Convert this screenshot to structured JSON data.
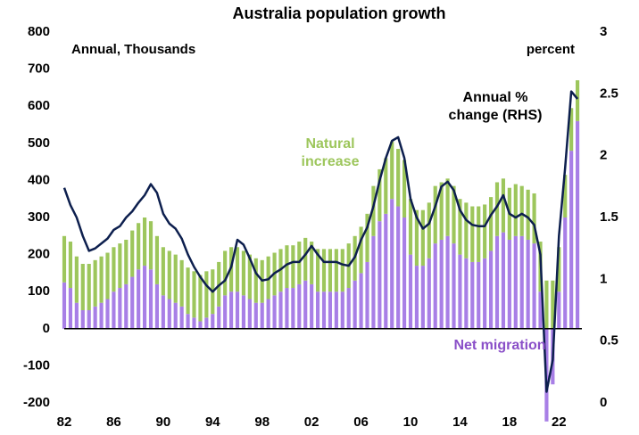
{
  "chart_data": {
    "type": "stacked-bar-line",
    "title": "Australia population growth",
    "annotations": [
      "Annual, Thousands",
      "percent"
    ],
    "x": [
      1982,
      1982.5,
      1983,
      1983.5,
      1984,
      1984.5,
      1985,
      1985.5,
      1986,
      1986.5,
      1987,
      1987.5,
      1988,
      1988.5,
      1989,
      1989.5,
      1990,
      1990.5,
      1991,
      1991.5,
      1992,
      1992.5,
      1993,
      1993.5,
      1994,
      1994.5,
      1995,
      1995.5,
      1996,
      1996.5,
      1997,
      1997.5,
      1998,
      1998.5,
      1999,
      1999.5,
      2000,
      2000.5,
      2001,
      2001.5,
      2002,
      2002.5,
      2003,
      2003.5,
      2004,
      2004.5,
      2005,
      2005.5,
      2006,
      2006.5,
      2007,
      2007.5,
      2008,
      2008.5,
      2009,
      2009.5,
      2010,
      2010.5,
      2011,
      2011.5,
      2012,
      2012.5,
      2013,
      2013.5,
      2014,
      2014.5,
      2015,
      2015.5,
      2016,
      2016.5,
      2017,
      2017.5,
      2018,
      2018.5,
      2019,
      2019.5,
      2020,
      2020.5,
      2021,
      2021.5,
      2022,
      2022.5,
      2023,
      2023.5
    ],
    "series": [
      {
        "name": "Net migration",
        "color": "#a87fe6",
        "values": [
          125,
          110,
          70,
          50,
          50,
          60,
          70,
          80,
          100,
          110,
          120,
          140,
          160,
          170,
          160,
          120,
          90,
          80,
          70,
          60,
          40,
          30,
          20,
          30,
          40,
          60,
          90,
          100,
          100,
          90,
          80,
          70,
          70,
          80,
          90,
          100,
          110,
          110,
          120,
          130,
          120,
          100,
          100,
          100,
          100,
          100,
          110,
          130,
          150,
          180,
          250,
          290,
          310,
          350,
          330,
          300,
          200,
          170,
          170,
          190,
          230,
          240,
          250,
          230,
          200,
          190,
          180,
          180,
          190,
          210,
          250,
          260,
          240,
          250,
          250,
          240,
          230,
          100,
          -250,
          -150,
          100,
          300,
          480,
          560
        ]
      },
      {
        "name": "Natural increase",
        "color": "#9dc65c",
        "values": [
          125,
          125,
          125,
          125,
          125,
          125,
          125,
          125,
          120,
          120,
          120,
          125,
          125,
          130,
          130,
          130,
          130,
          130,
          130,
          125,
          125,
          125,
          125,
          125,
          120,
          120,
          120,
          120,
          120,
          120,
          120,
          120,
          115,
          115,
          115,
          115,
          115,
          115,
          115,
          115,
          115,
          115,
          115,
          115,
          115,
          115,
          120,
          120,
          125,
          130,
          135,
          140,
          150,
          155,
          155,
          155,
          150,
          150,
          150,
          150,
          155,
          155,
          155,
          155,
          150,
          150,
          150,
          150,
          145,
          145,
          145,
          145,
          140,
          140,
          135,
          135,
          135,
          135,
          130,
          130,
          120,
          115,
          115,
          110
        ]
      },
      {
        "name": "Annual % change (RHS)",
        "color": "#0d1f4e",
        "axis": "y2",
        "values": [
          1.74,
          1.6,
          1.5,
          1.35,
          1.23,
          1.25,
          1.29,
          1.33,
          1.4,
          1.43,
          1.5,
          1.55,
          1.62,
          1.68,
          1.77,
          1.7,
          1.53,
          1.45,
          1.41,
          1.33,
          1.2,
          1.1,
          1.02,
          0.95,
          0.9,
          0.95,
          0.99,
          1.1,
          1.32,
          1.28,
          1.17,
          1.05,
          0.99,
          1.0,
          1.05,
          1.08,
          1.12,
          1.14,
          1.14,
          1.2,
          1.27,
          1.2,
          1.14,
          1.14,
          1.14,
          1.12,
          1.11,
          1.18,
          1.32,
          1.42,
          1.59,
          1.8,
          1.98,
          2.12,
          2.15,
          1.98,
          1.65,
          1.5,
          1.41,
          1.45,
          1.59,
          1.75,
          1.79,
          1.72,
          1.56,
          1.48,
          1.44,
          1.43,
          1.43,
          1.52,
          1.59,
          1.68,
          1.53,
          1.5,
          1.53,
          1.5,
          1.44,
          1.2,
          0.09,
          0.35,
          1.35,
          1.9,
          2.52,
          2.46
        ]
      }
    ],
    "xlim": [
      1982,
      2024
    ],
    "xticks": [
      {
        "value": 1982,
        "label": "82"
      },
      {
        "value": 1986,
        "label": "86"
      },
      {
        "value": 1990,
        "label": "90"
      },
      {
        "value": 1994,
        "label": "94"
      },
      {
        "value": 1998,
        "label": "98"
      },
      {
        "value": 2002,
        "label": "02"
      },
      {
        "value": 2006,
        "label": "06"
      },
      {
        "value": 2010,
        "label": "10"
      },
      {
        "value": 2014,
        "label": "14"
      },
      {
        "value": 2018,
        "label": "18"
      },
      {
        "value": 2022,
        "label": "22"
      }
    ],
    "ylim": [
      -200,
      800
    ],
    "yticks": [
      -200,
      -100,
      0,
      100,
      200,
      300,
      400,
      500,
      600,
      700,
      800
    ],
    "y2lim": [
      0,
      3
    ],
    "y2ticks": [
      0,
      0.5,
      1,
      1.5,
      2,
      2.5,
      3
    ]
  }
}
